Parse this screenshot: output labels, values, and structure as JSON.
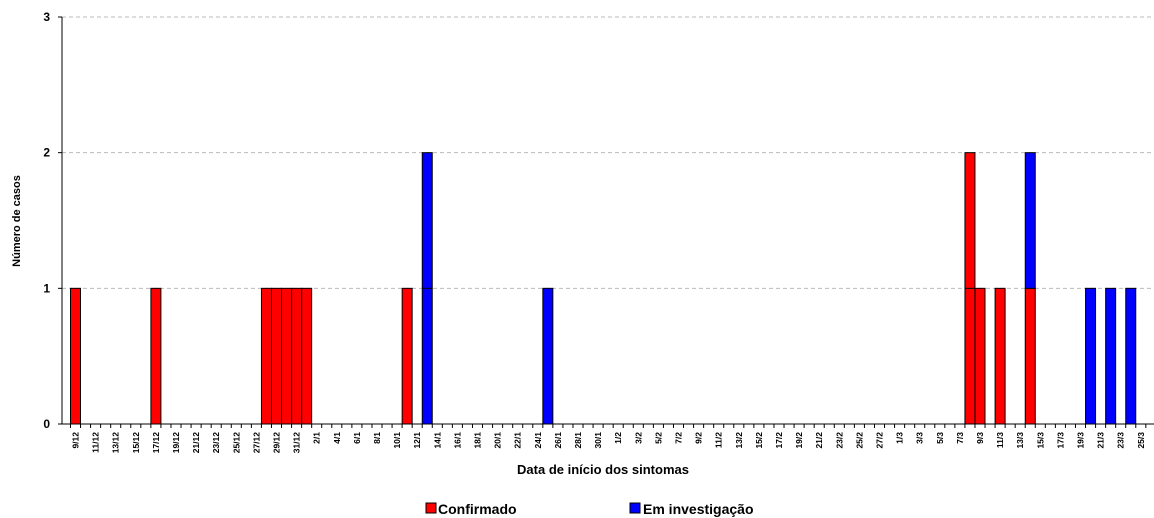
{
  "chart_data": {
    "type": "bar",
    "stacked": true,
    "xlabel": "Data de início dos sintomas",
    "ylabel": "Número de casos",
    "ylim": [
      0,
      3
    ],
    "yticks": [
      0,
      1,
      2,
      3
    ],
    "grid": "horizontal dashed",
    "legend_position": "bottom",
    "x_tick_labels": [
      "9/12",
      "11/12",
      "13/12",
      "15/12",
      "17/12",
      "19/12",
      "21/12",
      "23/12",
      "25/12",
      "27/12",
      "29/12",
      "31/12",
      "2/1",
      "4/1",
      "6/1",
      "8/1",
      "10/1",
      "12/1",
      "14/1",
      "16/1",
      "18/1",
      "20/1",
      "22/1",
      "24/1",
      "26/1",
      "28/1",
      "30/1",
      "1/2",
      "3/2",
      "5/2",
      "7/2",
      "9/2",
      "11/2",
      "13/2",
      "15/2",
      "17/2",
      "19/2",
      "21/2",
      "23/2",
      "25/2",
      "27/2",
      "1/3",
      "3/3",
      "5/3",
      "7/3",
      "9/3",
      "11/3",
      "13/3",
      "15/3",
      "17/3",
      "19/3",
      "21/3",
      "23/3",
      "25/3",
      "27/3",
      "29/3"
    ],
    "series": [
      {
        "name": "Confirmado",
        "color": "#ff0000",
        "points": [
          {
            "date": "9/12",
            "value": 1
          },
          {
            "date": "17/12",
            "value": 1
          },
          {
            "date": "28/12",
            "value": 1
          },
          {
            "date": "29/12",
            "value": 1
          },
          {
            "date": "30/12",
            "value": 1
          },
          {
            "date": "31/12",
            "value": 1
          },
          {
            "date": "1/1",
            "value": 1
          },
          {
            "date": "11/1",
            "value": 1
          },
          {
            "date": "8/3",
            "value": 2
          },
          {
            "date": "9/3",
            "value": 1
          },
          {
            "date": "11/3",
            "value": 1
          },
          {
            "date": "14/3",
            "value": 1
          }
        ]
      },
      {
        "name": "Em investigação",
        "color": "#0000ff",
        "points": [
          {
            "date": "13/1",
            "value": 2
          },
          {
            "date": "25/1",
            "value": 1
          },
          {
            "date": "14/3",
            "value": 1
          },
          {
            "date": "20/3",
            "value": 1
          },
          {
            "date": "22/3",
            "value": 1
          },
          {
            "date": "24/3",
            "value": 1
          }
        ]
      }
    ]
  }
}
